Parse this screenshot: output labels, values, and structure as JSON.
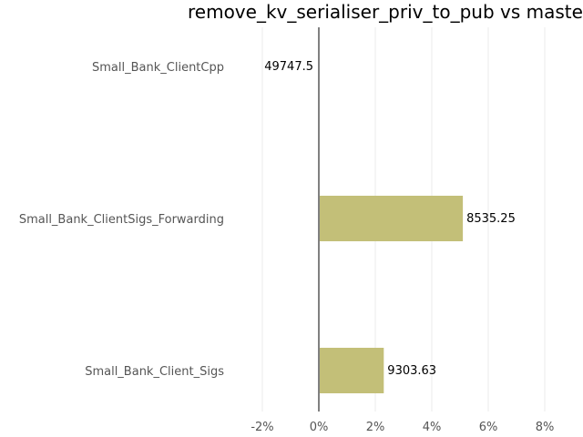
{
  "chart_data": {
    "type": "bar",
    "orientation": "horizontal",
    "title": "remove_kv_serialiser_priv_to_pub vs master",
    "xlabel": "",
    "ylabel": "",
    "categories": [
      "Small_Bank_ClientCpp",
      "Small_Bank_ClientSigs_Forwarding",
      "Small_Bank_Client_Sigs"
    ],
    "values": [
      0.0,
      5.1,
      2.3
    ],
    "value_unit": "%",
    "data_labels": [
      "49747.5",
      "8535.25",
      "9303.63"
    ],
    "x_ticks": [
      -2,
      0,
      2,
      4,
      6,
      8
    ],
    "x_tick_labels": [
      "-2%",
      "0%",
      "2%",
      "4%",
      "6%",
      "8%"
    ],
    "xlim": [
      -3.3,
      9.5
    ],
    "grid": "vertical",
    "legend": "none",
    "colors": {
      "bar": "#c3bf78",
      "zero_line": "#808080",
      "grid": "#ebebeb",
      "category_text": "#555555"
    }
  }
}
